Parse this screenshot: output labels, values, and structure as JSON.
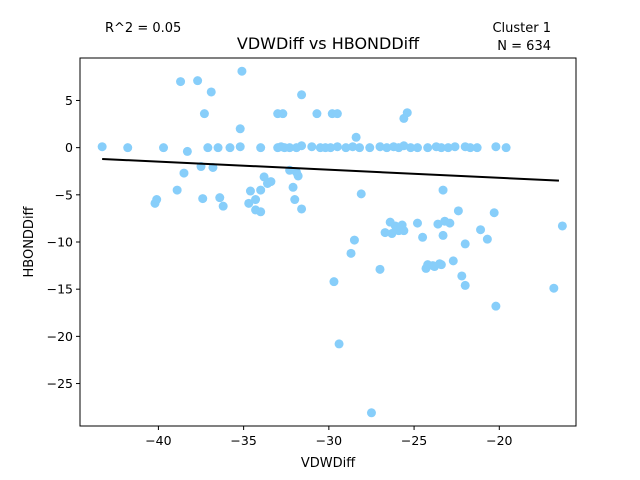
{
  "chart_data": {
    "type": "scatter",
    "title": "VDWDiff vs HBONDDiff",
    "xlabel": "VDWDiff",
    "ylabel": "HBONDDiff",
    "xlim": [
      -44.6,
      -15.5
    ],
    "ylim": [
      -29.5,
      9.5
    ],
    "xticks": [
      -40,
      -35,
      -30,
      -25,
      -20
    ],
    "yticks": [
      5,
      0,
      -5,
      -10,
      -15,
      -20,
      -25
    ],
    "annotations": {
      "r2": "R^2 = 0.05",
      "cluster": "Cluster 1",
      "n": "N = 634"
    },
    "colors": {
      "points": "#87cefa",
      "fit_line": "#000000"
    },
    "fit_line": {
      "x": [
        -43.3,
        -16.5
      ],
      "y": [
        -1.2,
        -3.5
      ]
    },
    "x": [
      -43.3,
      -41.8,
      -39.7,
      -38.3,
      -37.1,
      -36.5,
      -35.8,
      -35.2,
      -34.0,
      -33.0,
      -32.8,
      -32.6,
      -32.3,
      -31.9,
      -31.6,
      -31.0,
      -30.5,
      -30.2,
      -29.9,
      -29.5,
      -29.0,
      -28.6,
      -28.2,
      -27.6,
      -27.0,
      -26.6,
      -26.2,
      -25.9,
      -25.6,
      -25.2,
      -24.8,
      -24.2,
      -23.7,
      -23.4,
      -23.0,
      -22.6,
      -22.0,
      -21.7,
      -21.3,
      -20.2,
      -19.6,
      -38.7,
      -37.7,
      -36.9,
      -35.1,
      -37.3,
      -35.2,
      -33.0,
      -32.7,
      -31.6,
      -30.7,
      -29.8,
      -29.5,
      -28.4,
      -25.6,
      -25.4,
      -38.9,
      -38.5,
      -37.5,
      -36.8,
      -36.2,
      -34.6,
      -34.0,
      -33.6,
      -34.3,
      -33.8,
      -33.4,
      -32.1,
      -31.9,
      -31.8,
      -37.4,
      -36.4,
      -34.7,
      -34.3,
      -34.0,
      -32.3,
      -32.0,
      -31.6,
      -40.2,
      -40.1,
      -28.5,
      -28.1,
      -26.4,
      -26.1,
      -25.9,
      -25.7,
      -24.8,
      -24.5,
      -23.6,
      -23.2,
      -22.9,
      -22.4,
      -23.3,
      -26.7,
      -26.3,
      -25.6,
      -24.3,
      -23.8,
      -23.4,
      -22.0,
      -21.1,
      -20.7,
      -20.3,
      -28.7,
      -27.0,
      -24.2,
      -23.9,
      -23.5,
      -23.3,
      -22.7,
      -22.2,
      -22.0,
      -29.7,
      -29.4,
      -20.2,
      -16.8,
      -16.3,
      -27.5
    ],
    "y": [
      0.1,
      0.0,
      0.0,
      -0.4,
      0.0,
      0.0,
      0.0,
      0.1,
      0.0,
      0.0,
      0.1,
      0.0,
      0.0,
      0.0,
      0.2,
      0.1,
      0.0,
      0.0,
      0.0,
      0.1,
      0.0,
      0.1,
      0.0,
      0.0,
      0.1,
      0.0,
      0.1,
      0.0,
      0.2,
      0.0,
      0.0,
      0.0,
      0.1,
      0.0,
      0.0,
      0.1,
      0.1,
      0.0,
      0.0,
      0.1,
      0.0,
      7.0,
      7.1,
      5.9,
      8.1,
      3.6,
      2.0,
      3.6,
      3.6,
      5.6,
      3.6,
      3.6,
      3.6,
      1.1,
      3.1,
      3.7,
      -4.5,
      -2.7,
      -2.0,
      -2.1,
      -6.2,
      -4.6,
      -4.5,
      -3.8,
      -5.5,
      -3.1,
      -3.6,
      -4.2,
      -2.6,
      -3.0,
      -5.4,
      -5.3,
      -5.9,
      -6.6,
      -6.8,
      -2.4,
      -5.5,
      -6.5,
      -5.9,
      -5.5,
      -9.8,
      -4.9,
      -7.9,
      -8.3,
      -8.8,
      -8.2,
      -8.0,
      -9.5,
      -8.1,
      -7.8,
      -8.0,
      -6.7,
      -4.5,
      -9.0,
      -9.1,
      -8.8,
      -12.8,
      -12.6,
      -12.4,
      -10.2,
      -8.7,
      -9.7,
      -6.9,
      -11.2,
      -12.9,
      -12.4,
      -12.5,
      -12.3,
      -9.3,
      -12.0,
      -13.6,
      -14.6,
      -14.2,
      -20.8,
      -16.8,
      -14.9,
      -8.3,
      -28.1
    ]
  }
}
